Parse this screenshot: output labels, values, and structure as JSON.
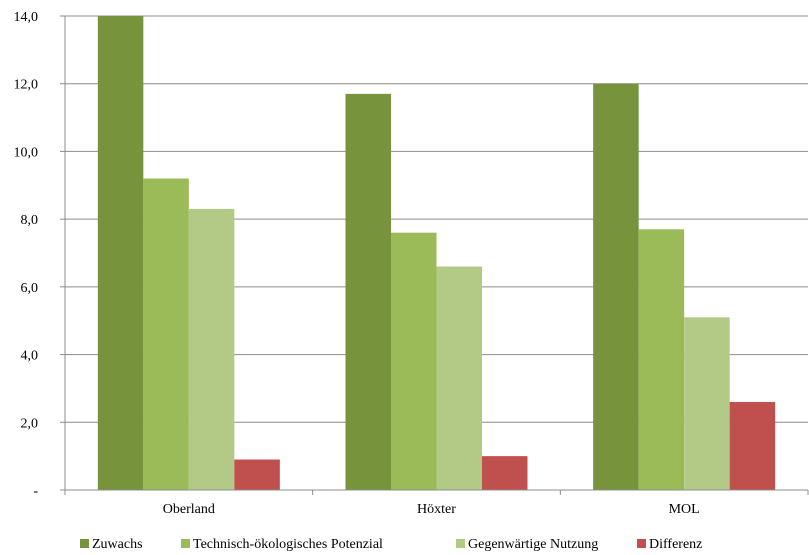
{
  "chart_data": {
    "type": "bar",
    "categories": [
      "Oberland",
      "Höxter",
      "MOL"
    ],
    "series": [
      {
        "name": "Zuwachs",
        "values": [
          14.0,
          11.7,
          12.0
        ],
        "color": "#77933c"
      },
      {
        "name": "Technisch-ökologisches Potenzial",
        "values": [
          9.2,
          7.6,
          7.7
        ],
        "color": "#9bbb59"
      },
      {
        "name": "Gegenwärtige Nutzung",
        "values": [
          8.3,
          6.6,
          5.1
        ],
        "color": "#b3ca86"
      },
      {
        "name": "Differenz",
        "values": [
          0.9,
          1.0,
          2.6
        ],
        "color": "#c0504d"
      }
    ],
    "ylim": [
      0,
      14
    ],
    "yticks": [
      0,
      2,
      4,
      6,
      8,
      10,
      12,
      14
    ],
    "ytick_labels": [
      "-",
      "2,0",
      "4,0",
      "6,0",
      "8,0",
      "10,0",
      "12,0",
      "14,0"
    ],
    "grid": true,
    "legend_position": "bottom",
    "title": "",
    "xlabel": "",
    "ylabel": ""
  }
}
